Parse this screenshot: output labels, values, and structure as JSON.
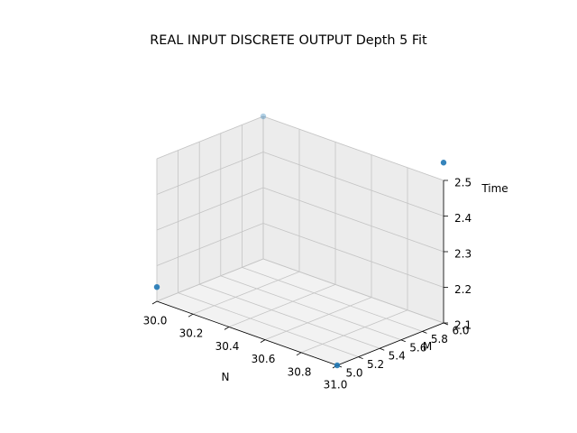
{
  "chart_data": {
    "type": "scatter",
    "projection": "3d",
    "title": "REAL INPUT DISCRETE OUTPUT Depth 5 Fit",
    "xlabel": "N",
    "ylabel": "M",
    "zlabel": "Time",
    "xlim": [
      30.0,
      31.0
    ],
    "ylim": [
      5.0,
      6.0
    ],
    "zlim": [
      2.1,
      2.5
    ],
    "xticks": [
      "30.0",
      "30.2",
      "30.4",
      "30.6",
      "30.8",
      "31.0"
    ],
    "yticks": [
      "5.0",
      "5.2",
      "5.4",
      "5.6",
      "5.8",
      "6.0"
    ],
    "zticks": [
      "2.1",
      "2.2",
      "2.3",
      "2.4",
      "2.5"
    ],
    "grid": true,
    "point_color": "#1f77b4",
    "points": [
      {
        "x": 30.0,
        "y": 5.0,
        "z": 2.14
      },
      {
        "x": 31.0,
        "y": 5.0,
        "z": 2.1
      },
      {
        "x": 30.0,
        "y": 6.0,
        "z": 2.5
      },
      {
        "x": 31.0,
        "y": 6.0,
        "z": 2.55
      }
    ]
  }
}
